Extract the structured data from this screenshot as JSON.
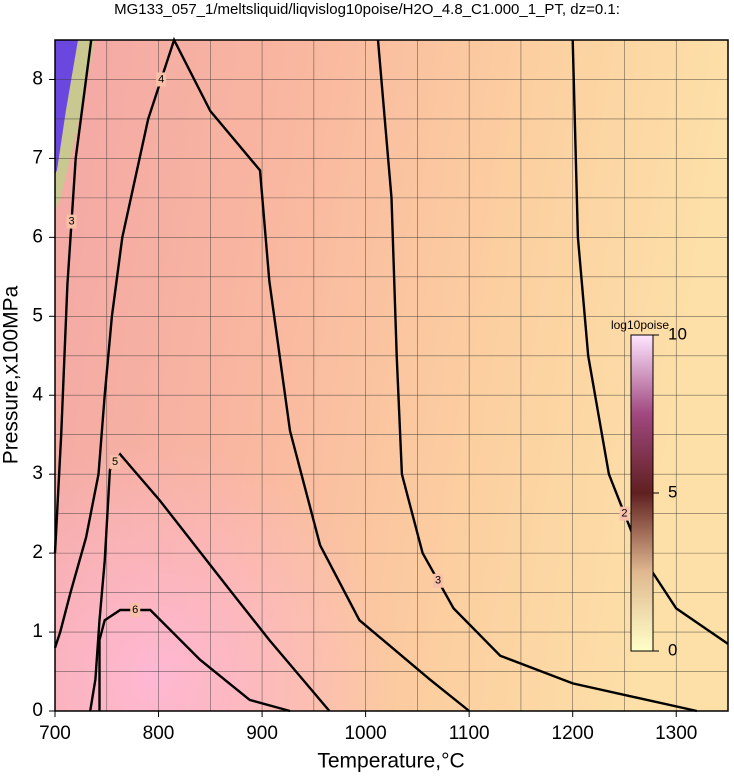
{
  "chart_data": {
    "type": "contour",
    "title": "MG133_057_1/meltsliquid/liqvislog10poise/H2O_4.8_C1.000_1_PT, dz=0.1:",
    "xlabel": "Temperature,°C",
    "ylabel": "Pressure,x100MPa",
    "xlim": [
      700,
      1350
    ],
    "ylim": [
      0,
      8.5
    ],
    "xticks": [
      700,
      800,
      900,
      1000,
      1100,
      1200,
      1300
    ],
    "yticks": [
      0,
      1,
      2,
      3,
      4,
      5,
      6,
      7,
      8
    ],
    "xgrid": [
      750,
      800,
      850,
      900,
      950,
      1000,
      1050,
      1100,
      1150,
      1200,
      1250,
      1300
    ],
    "ygrid": [
      0.5,
      1,
      1.5,
      2,
      2.5,
      3,
      3.5,
      4,
      4.5,
      5,
      5.5,
      6,
      6.5,
      7,
      7.5,
      8
    ],
    "grid": true,
    "contours": [
      {
        "level": 2,
        "x": [
          1200,
          1205,
          1215,
          1235,
          1265,
          1300,
          1350
        ],
        "y": [
          8.5,
          6,
          4.5,
          3,
          2,
          1.3,
          0.85
        ]
      },
      {
        "level": 3,
        "x": [
          1012,
          1025,
          1030,
          1035,
          1055,
          1085,
          1130,
          1200,
          1320
        ],
        "y": [
          8.5,
          6.5,
          4.5,
          3,
          2,
          1.3,
          0.7,
          0.35,
          0
        ]
      },
      {
        "level": 3,
        "x": [
          700,
          706,
          712,
          720,
          735
        ],
        "y": [
          2.0,
          3.5,
          5.4,
          7,
          8.5
        ]
      },
      {
        "level": 4,
        "x": [
          700,
          705,
          715,
          730,
          742,
          748,
          755,
          765,
          790,
          815,
          850,
          898,
          907,
          927,
          956,
          994,
          1062,
          1100
        ],
        "y": [
          0.8,
          1.0,
          1.5,
          2.2,
          3,
          4,
          5,
          6,
          7.5,
          8.5,
          7.6,
          6.85,
          5.45,
          3.55,
          2.1,
          1.15,
          0.4,
          0
        ]
      },
      {
        "level": 5,
        "x": [
          734,
          739,
          743,
          748,
          753,
          763,
          801,
          869,
          907,
          965
        ],
        "y": [
          0,
          0.4,
          1.15,
          1.9,
          3.05,
          3.25,
          2.67,
          1.53,
          0.9,
          0
        ]
      },
      {
        "level": 6,
        "x": [
          743,
          743,
          748,
          763,
          792,
          840,
          888,
          927
        ],
        "y": [
          0,
          0.9,
          1.15,
          1.28,
          1.28,
          0.65,
          0.14,
          0
        ]
      }
    ],
    "colorbar": {
      "label": "log10poise",
      "lim": [
        0,
        10
      ],
      "ticks": [
        0,
        5,
        10
      ]
    }
  }
}
